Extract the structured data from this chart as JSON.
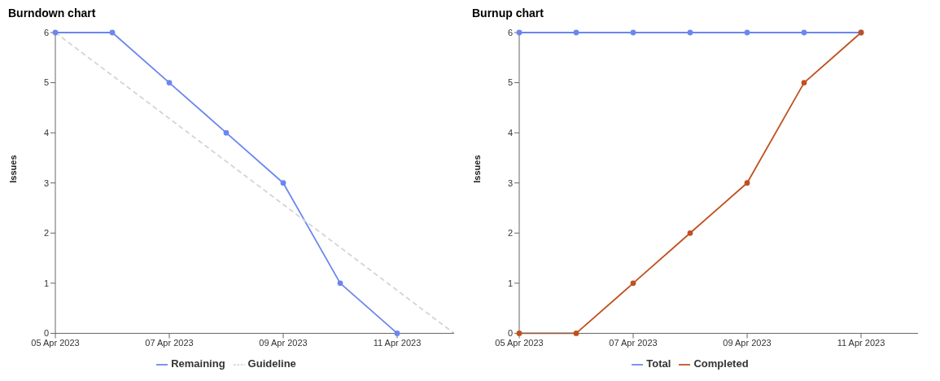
{
  "chart_data": [
    {
      "type": "line",
      "title": "Burndown chart",
      "ylabel": "Issues",
      "x": [
        "2023-04-05",
        "2023-04-06",
        "2023-04-07",
        "2023-04-08",
        "2023-04-09",
        "2023-04-10",
        "2023-04-11"
      ],
      "series": [
        {
          "name": "Remaining",
          "color": "#6b86f0",
          "values": [
            6,
            6,
            5,
            4,
            3,
            1,
            0
          ],
          "marker": "circle",
          "line_style": "solid"
        },
        {
          "name": "Guideline",
          "color": "#d4d4d4",
          "x": [
            "2023-04-05",
            "2023-04-12"
          ],
          "values": [
            6,
            0
          ],
          "marker": "none",
          "line_style": "dashed"
        }
      ],
      "xlim": [
        "2023-04-05",
        "2023-04-12"
      ],
      "xticks": [
        {
          "value": "2023-04-05",
          "label": "05 Apr 2023"
        },
        {
          "value": "2023-04-07",
          "label": "07 Apr 2023"
        },
        {
          "value": "2023-04-09",
          "label": "09 Apr 2023"
        },
        {
          "value": "2023-04-11",
          "label": "11 Apr 2023"
        }
      ],
      "ylim": [
        0,
        6
      ],
      "yticks": [
        0,
        1,
        2,
        3,
        4,
        5,
        6
      ],
      "grid": false,
      "legend": "bottom"
    },
    {
      "type": "line",
      "title": "Burnup chart",
      "ylabel": "Issues",
      "x": [
        "2023-04-05",
        "2023-04-06",
        "2023-04-07",
        "2023-04-08",
        "2023-04-09",
        "2023-04-10",
        "2023-04-11"
      ],
      "series": [
        {
          "name": "Total",
          "color": "#6b86f0",
          "values": [
            6,
            6,
            6,
            6,
            6,
            6,
            6
          ],
          "marker": "circle",
          "line_style": "solid"
        },
        {
          "name": "Completed",
          "color": "#c0501f",
          "values": [
            0,
            0,
            1,
            2,
            3,
            5,
            6
          ],
          "marker": "circle",
          "line_style": "solid"
        }
      ],
      "xlim": [
        "2023-04-05",
        "2023-04-12"
      ],
      "xticks": [
        {
          "value": "2023-04-05",
          "label": "05 Apr 2023"
        },
        {
          "value": "2023-04-07",
          "label": "07 Apr 2023"
        },
        {
          "value": "2023-04-09",
          "label": "09 Apr 2023"
        },
        {
          "value": "2023-04-11",
          "label": "11 Apr 2023"
        }
      ],
      "ylim": [
        0,
        6
      ],
      "yticks": [
        0,
        1,
        2,
        3,
        4,
        5,
        6
      ],
      "grid": false,
      "legend": "bottom"
    }
  ]
}
